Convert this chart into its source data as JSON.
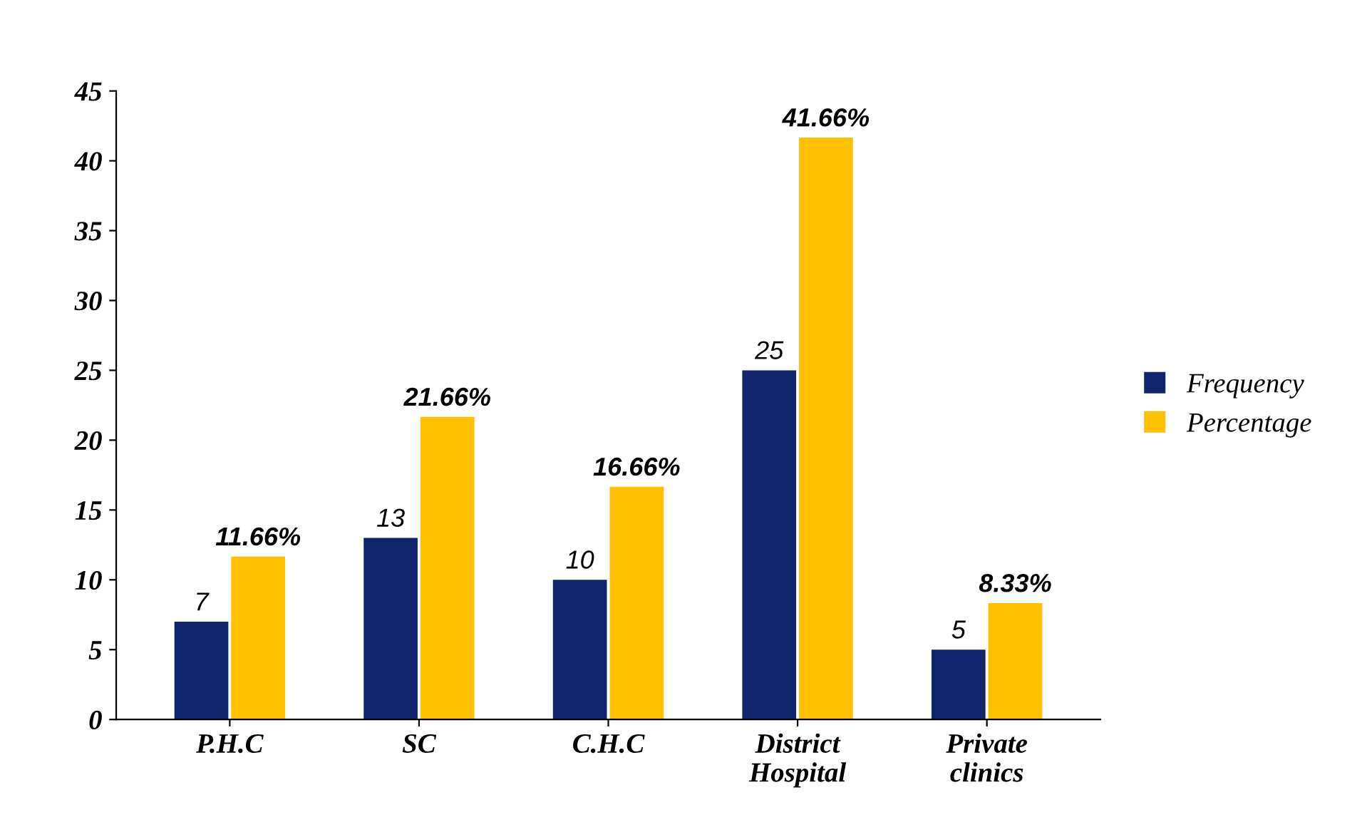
{
  "chart_data": {
    "type": "bar",
    "categories": [
      "P.H.C",
      "SC",
      "C.H.C",
      "District Hospital",
      "Private clinics"
    ],
    "series": [
      {
        "name": "Frequency",
        "color": "#10256b",
        "values": [
          7,
          13,
          10,
          25,
          5
        ],
        "value_labels": [
          "7",
          "13",
          "10",
          "25",
          "5"
        ]
      },
      {
        "name": "Percentage",
        "color": "#ffc000",
        "values": [
          11.66,
          21.66,
          16.66,
          41.66,
          8.33
        ],
        "value_labels": [
          "11.66%",
          "21.66%",
          "16.66%",
          "41.66%",
          "8.33%"
        ]
      }
    ],
    "ylim": [
      0,
      45
    ],
    "yticks": [
      0,
      5,
      10,
      15,
      20,
      25,
      30,
      35,
      40,
      45
    ],
    "grid": false,
    "legend": "right"
  }
}
